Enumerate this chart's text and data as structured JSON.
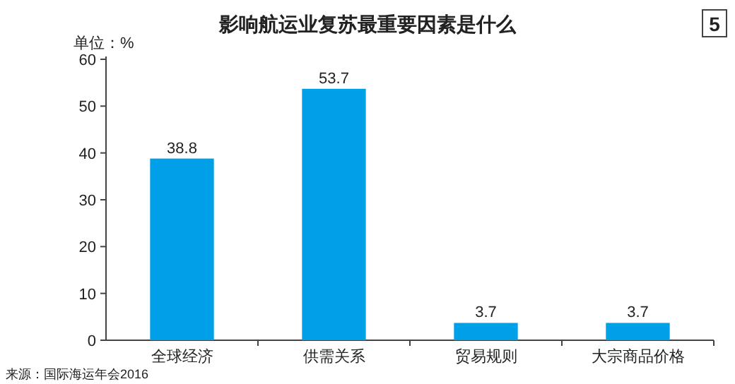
{
  "chart_data": {
    "type": "bar",
    "title": "影响航运业复苏最重要因素是什么",
    "ylabel": "单位：%",
    "categories": [
      "全球经济",
      "供需关系",
      "贸易规则",
      "大宗商品价格"
    ],
    "values": [
      38.8,
      53.7,
      3.7,
      3.7
    ],
    "color": "#00a0e9",
    "ylim": [
      0,
      60
    ],
    "yticks": [
      0,
      10,
      20,
      30,
      40,
      50,
      60
    ],
    "data_labels": true,
    "annotations": [
      "5",
      "来源：国际海运年会2016"
    ]
  }
}
